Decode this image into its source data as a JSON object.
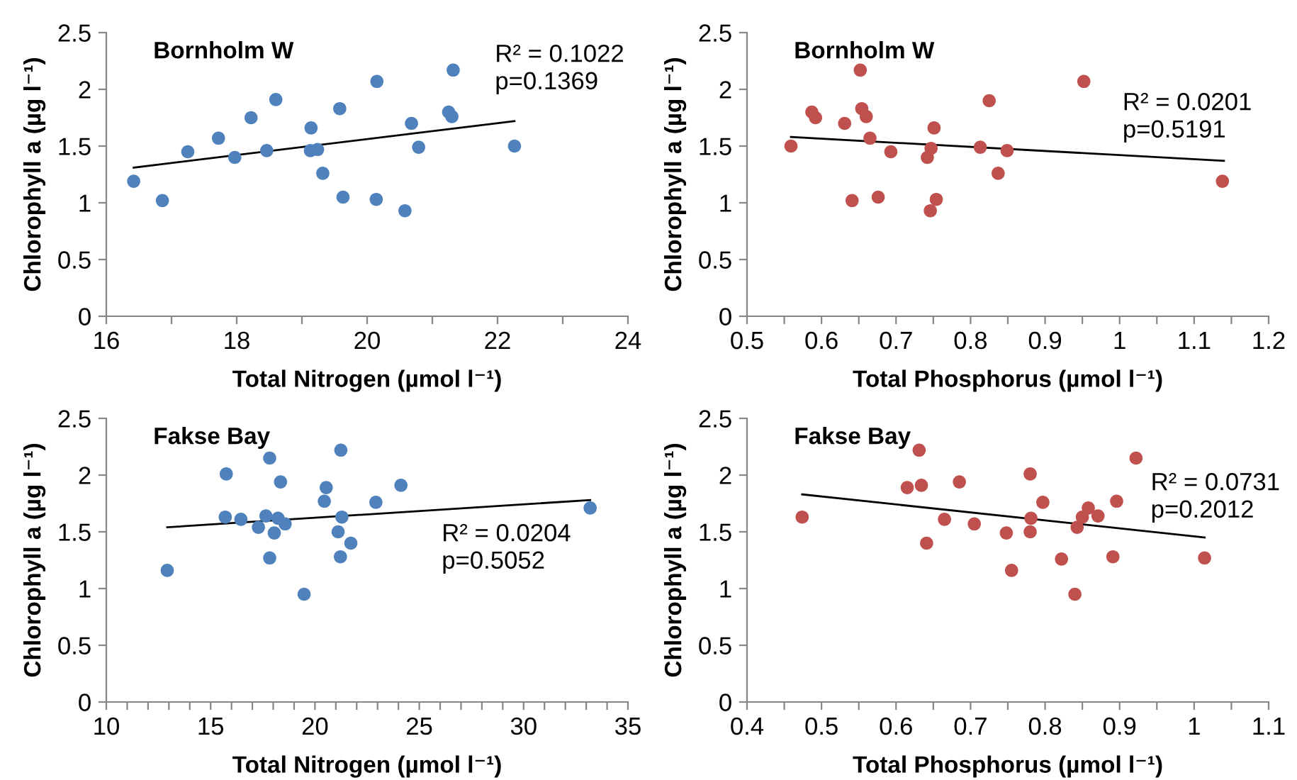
{
  "chart_data": [
    {
      "type": "scatter",
      "title": "Bornholm W",
      "xlabel": "Total Nitrogen (µmol l⁻¹)",
      "ylabel": "Chlorophyll a (µg l⁻¹)",
      "annotations": [
        "R² = 0.1022\np=0.1369"
      ],
      "marker": "circle",
      "grid": false,
      "legend": false,
      "xlim": [
        16,
        24
      ],
      "xticks": [
        16,
        {
          "value": 17,
          "label": null
        },
        18,
        {
          "value": 19,
          "label": null
        },
        20,
        {
          "value": 21,
          "label": null
        },
        22,
        {
          "value": 23,
          "label": null
        },
        24
      ],
      "ylim": [
        0,
        2.5
      ],
      "yticks": [
        0,
        0.5,
        1,
        1.5,
        2,
        2.5
      ],
      "series": [
        {
          "color": "#4f81bd",
          "x": [
            16.42,
            16.86,
            17.25,
            17.72,
            17.97,
            18.22,
            18.46,
            18.6,
            19.14,
            19.13,
            19.24,
            19.32,
            19.58,
            19.63,
            20.15,
            20.14,
            20.58,
            20.68,
            20.79,
            21.25,
            21.3,
            21.32,
            22.26
          ],
          "values": [
            1.19,
            1.02,
            1.45,
            1.57,
            1.4,
            1.75,
            1.46,
            1.91,
            1.66,
            1.46,
            1.47,
            1.26,
            1.83,
            1.05,
            2.07,
            1.03,
            0.93,
            1.7,
            1.49,
            1.8,
            1.76,
            2.17,
            1.5
          ]
        },
        {
          "type": "line",
          "marker": "none",
          "color": "#000000",
          "x": [
            16.42,
            22.26
          ],
          "values": [
            1.31,
            1.72
          ]
        }
      ]
    },
    {
      "type": "scatter",
      "title": "Bornholm W",
      "xlabel": "Total Phosphorus (µmol l⁻¹)",
      "ylabel": "Chlorophyll a (µg l⁻¹)",
      "annotations": [
        "R² = 0.0201\np=0.5191"
      ],
      "marker": "circle",
      "grid": false,
      "legend": false,
      "xlim": [
        0.5,
        1.2
      ],
      "xticks": [
        0.5,
        {
          "value": 0.55,
          "label": null
        },
        0.6,
        {
          "value": 0.65,
          "label": null
        },
        0.7,
        {
          "value": 0.75,
          "label": null
        },
        0.8,
        {
          "value": 0.85,
          "label": null
        },
        0.9,
        {
          "value": 0.95,
          "label": null
        },
        1,
        {
          "value": 1.05,
          "label": null
        },
        1.1,
        {
          "value": 1.15,
          "label": null
        },
        1.2
      ],
      "ylim": [
        0,
        2.5
      ],
      "yticks": [
        0,
        0.5,
        1,
        1.5,
        2,
        2.5
      ],
      "series": [
        {
          "color": "#c0504d",
          "x": [
            0.559,
            0.587,
            0.592,
            0.631,
            0.641,
            0.652,
            0.654,
            0.66,
            0.665,
            0.676,
            0.691,
            0.693,
            0.742,
            0.746,
            0.747,
            0.751,
            0.754,
            0.813,
            0.825,
            0.837,
            0.849,
            0.952,
            1.138
          ],
          "values": [
            1.5,
            1.8,
            1.75,
            1.7,
            1.02,
            2.17,
            1.83,
            1.76,
            1.57,
            1.05,
            null,
            1.45,
            1.4,
            0.93,
            1.48,
            1.66,
            1.03,
            1.49,
            1.9,
            1.26,
            1.46,
            2.07,
            1.19
          ]
        },
        {
          "type": "line",
          "marker": "none",
          "color": "#000000",
          "x": [
            0.559,
            1.14
          ],
          "values": [
            1.58,
            1.37
          ]
        }
      ]
    },
    {
      "type": "scatter",
      "title": "Fakse Bay",
      "xlabel": "Total Nitrogen (µmol l⁻¹)",
      "ylabel": "Chlorophyll a (µg l⁻¹)",
      "annotations": [
        "R² = 0.0204\np=0.5052"
      ],
      "marker": "circle",
      "grid": false,
      "legend": false,
      "xlim": [
        10,
        35
      ],
      "xticks": [
        10,
        {
          "value": 11,
          "label": null
        },
        {
          "value": 12,
          "label": null
        },
        {
          "value": 13,
          "label": null
        },
        {
          "value": 14,
          "label": null
        },
        15,
        {
          "value": 16,
          "label": null
        },
        {
          "value": 17,
          "label": null
        },
        {
          "value": 18,
          "label": null
        },
        {
          "value": 19,
          "label": null
        },
        20,
        {
          "value": 21,
          "label": null
        },
        {
          "value": 22,
          "label": null
        },
        {
          "value": 23,
          "label": null
        },
        {
          "value": 24,
          "label": null
        },
        25,
        {
          "value": 26,
          "label": null
        },
        {
          "value": 27,
          "label": null
        },
        {
          "value": 28,
          "label": null
        },
        {
          "value": 29,
          "label": null
        },
        30,
        {
          "value": 31,
          "label": null
        },
        {
          "value": 32,
          "label": null
        },
        {
          "value": 33,
          "label": null
        },
        {
          "value": 34,
          "label": null
        },
        35
      ],
      "ylim": [
        0,
        2.5
      ],
      "yticks": [
        0,
        0.5,
        1,
        1.5,
        2,
        2.5
      ],
      "series": [
        {
          "color": "#4f81bd",
          "x": [
            12.92,
            15.75,
            15.7,
            16.45,
            17.29,
            17.65,
            17.83,
            17.83,
            18.05,
            18.23,
            18.35,
            18.57,
            19.48,
            20.45,
            20.54,
            21.11,
            21.2,
            21.22,
            21.24,
            21.29,
            21.72,
            22.92,
            24.12,
            33.19
          ],
          "values": [
            1.16,
            2.01,
            1.63,
            1.61,
            1.54,
            1.64,
            2.15,
            1.27,
            1.49,
            1.62,
            1.94,
            1.57,
            0.95,
            1.77,
            1.89,
            1.5,
            null,
            1.28,
            2.22,
            1.63,
            1.4,
            1.76,
            1.91,
            1.71
          ]
        },
        {
          "type": "line",
          "marker": "none",
          "color": "#000000",
          "x": [
            12.92,
            33.19
          ],
          "values": [
            1.54,
            1.78
          ]
        }
      ]
    },
    {
      "type": "scatter",
      "title": "Fakse Bay",
      "xlabel": "Total Phosphorus (µmol l⁻¹)",
      "ylabel": "Chlorophyll a (µg l⁻¹)",
      "annotations": [
        "R² = 0.0731\np=0.2012"
      ],
      "marker": "circle",
      "grid": false,
      "legend": false,
      "xlim": [
        0.4,
        1.1
      ],
      "xticks": [
        0.4,
        {
          "value": 0.45,
          "label": null
        },
        0.5,
        {
          "value": 0.55,
          "label": null
        },
        0.6,
        {
          "value": 0.65,
          "label": null
        },
        0.7,
        {
          "value": 0.75,
          "label": null
        },
        0.8,
        {
          "value": 0.85,
          "label": null
        },
        0.9,
        {
          "value": 0.95,
          "label": null
        },
        1,
        {
          "value": 1.05,
          "label": null
        },
        1.1
      ],
      "ylim": [
        0,
        2.5
      ],
      "yticks": [
        0,
        0.5,
        1,
        1.5,
        2,
        2.5
      ],
      "series": [
        {
          "color": "#c0504d",
          "x": [
            0.474,
            0.615,
            0.631,
            0.634,
            0.641,
            0.665,
            0.685,
            0.705,
            0.748,
            0.755,
            0.78,
            0.78,
            0.781,
            0.797,
            0.822,
            0.84,
            0.843,
            0.85,
            0.858,
            0.871,
            0.891,
            0.896,
            0.922,
            1.014
          ],
          "values": [
            1.63,
            1.89,
            2.22,
            1.91,
            1.4,
            1.61,
            1.94,
            1.57,
            1.49,
            1.16,
            2.01,
            1.5,
            1.62,
            1.76,
            1.26,
            0.95,
            1.54,
            1.63,
            1.71,
            1.64,
            1.28,
            1.77,
            2.15,
            1.27
          ]
        },
        {
          "type": "line",
          "marker": "none",
          "color": "#000000",
          "x": [
            0.474,
            1.014
          ],
          "values": [
            1.83,
            1.45
          ]
        }
      ]
    }
  ]
}
